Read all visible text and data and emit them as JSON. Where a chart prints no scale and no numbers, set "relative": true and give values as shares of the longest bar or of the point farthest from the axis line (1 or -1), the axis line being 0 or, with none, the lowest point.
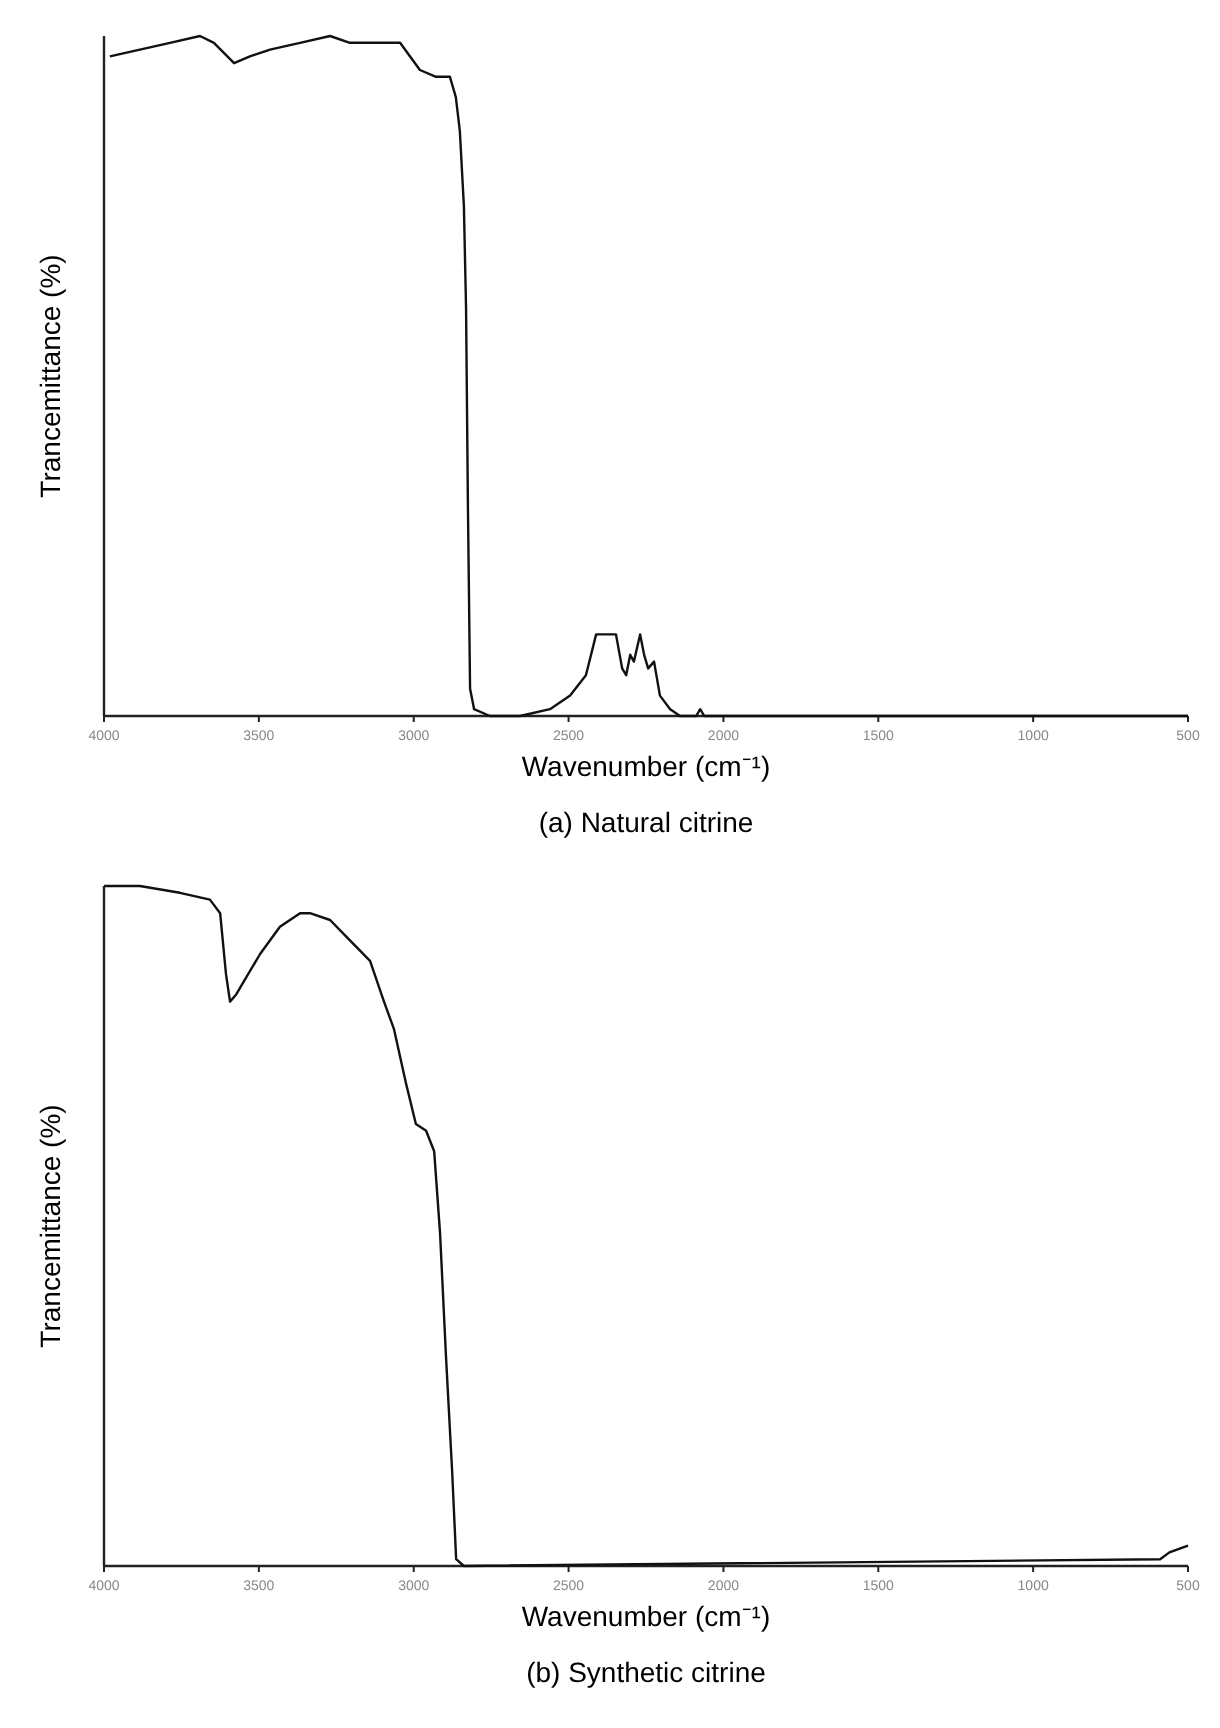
{
  "chart_data": [
    {
      "type": "line",
      "title": "(a) Natural citrine",
      "xlabel": "Wavenumber (cm⁻¹)",
      "ylabel": "Trancemittance (%)",
      "relative": true,
      "xlim": [
        4000,
        500
      ],
      "xticks": [
        4000,
        3500,
        3000,
        2500,
        2000,
        1500,
        1000,
        500
      ],
      "marker": "none",
      "line_style": "solid",
      "series": [
        {
          "color": "#111111",
          "x": [
            3981,
            3884,
            3787,
            3690,
            3645,
            3580,
            3529,
            3464,
            3367,
            3270,
            3206,
            3109,
            3044,
            2980,
            2928,
            2883,
            2864,
            2851,
            2838,
            2831,
            2825,
            2818,
            2805,
            2754,
            2657,
            2560,
            2495,
            2444,
            2411,
            2386,
            2366,
            2347,
            2327,
            2314,
            2301,
            2289,
            2269,
            2256,
            2243,
            2224,
            2205,
            2172,
            2140,
            2088,
            2075,
            2062,
            500
          ],
          "values": [
            0.97,
            0.98,
            0.99,
            1.0,
            0.99,
            0.96,
            0.97,
            0.98,
            0.99,
            1.0,
            0.99,
            0.99,
            0.99,
            0.95,
            0.94,
            0.94,
            0.91,
            0.86,
            0.75,
            0.6,
            0.31,
            0.04,
            0.01,
            0.0,
            0,
            0.01,
            0.03,
            0.06,
            0.12,
            0.12,
            0.12,
            0.12,
            0.07,
            0.06,
            0.09,
            0.08,
            0.12,
            0.09,
            0.07,
            0.08,
            0.03,
            0.01,
            0,
            0,
            0.01,
            0,
            0
          ]
        }
      ]
    },
    {
      "type": "line",
      "title": "(b) Synthetic citrine",
      "xlabel": "Wavenumber (cm⁻¹)",
      "ylabel": "Trancemittance (%)",
      "relative": true,
      "xlim": [
        4000,
        500
      ],
      "xticks": [
        4000,
        3500,
        3000,
        2500,
        2000,
        1500,
        1000,
        500
      ],
      "marker": "none",
      "line_style": "solid",
      "series": [
        {
          "color": "#111111",
          "x": [
            4000,
            3884,
            3755,
            3658,
            3625,
            3606,
            3593,
            3574,
            3548,
            3496,
            3432,
            3367,
            3335,
            3270,
            3206,
            3141,
            3096,
            3064,
            3025,
            2993,
            2960,
            2934,
            2915,
            2896,
            2876,
            2863,
            2838,
            590,
            560,
            500
          ],
          "values": [
            1.0,
            1.0,
            0.99,
            0.98,
            0.96,
            0.87,
            0.83,
            0.84,
            0.86,
            0.9,
            0.94,
            0.96,
            0.96,
            0.95,
            0.92,
            0.89,
            0.83,
            0.79,
            0.71,
            0.65,
            0.64,
            0.61,
            0.49,
            0.31,
            0.14,
            0.01,
            0,
            0.01,
            0.02,
            0.03
          ]
        }
      ]
    }
  ]
}
